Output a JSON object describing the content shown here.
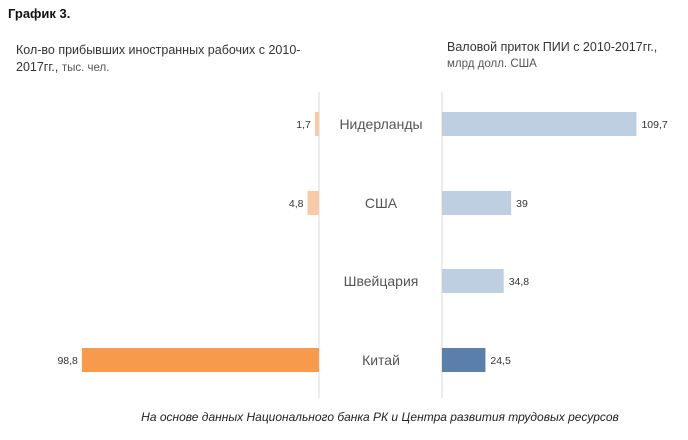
{
  "page": {
    "title": "График 3.",
    "source": "На основе данных Национального банка РК и Центра развития трудовых ресурсов"
  },
  "chart_data": [
    {
      "type": "bar",
      "orientation": "horizontal",
      "title": "Кол-во прибывших иностранных рабочих с 2010-2017гг.,",
      "unit": "тыс. чел.",
      "categories": [
        "Нидерланды",
        "США",
        "Швейцария",
        "Китай"
      ],
      "values": [
        1.7,
        4.8,
        null,
        98.8
      ],
      "value_labels": [
        "1,7",
        "4,8",
        "",
        "98,8"
      ],
      "colors": [
        "#f8cba6",
        "#f8cba6",
        "#f8cba6",
        "#f79a4b"
      ],
      "direction": "right-to-left",
      "xlim": [
        0,
        100
      ]
    },
    {
      "type": "bar",
      "orientation": "horizontal",
      "title": "Валовой приток ПИИ с 2010-2017гг.,",
      "unit": "млрд долл. США",
      "categories": [
        "Нидерланды",
        "США",
        "Швейцария",
        "Китай"
      ],
      "values": [
        109.7,
        39,
        34.8,
        24.5
      ],
      "value_labels": [
        "109,7",
        "39",
        "34,8",
        "24,5"
      ],
      "colors": [
        "#bfcfe2",
        "#bfcfe2",
        "#bfcfe2",
        "#5b7fab"
      ],
      "direction": "left-to-right",
      "xlim": [
        0,
        110
      ]
    }
  ]
}
